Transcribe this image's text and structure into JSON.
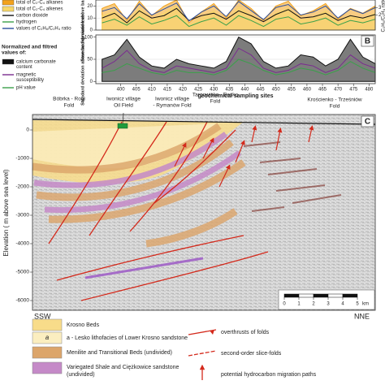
{
  "chart_data": [
    {
      "type": "line",
      "y_label": "Standard deviation above background level",
      "y2_label": "C₂H₆/C₂H₄ ratio",
      "x": [
        394,
        398,
        402,
        406,
        410,
        414,
        418,
        422,
        426,
        430,
        434,
        438,
        442,
        446,
        450,
        454,
        458,
        462,
        466,
        470,
        474,
        478,
        482
      ],
      "xlim": [
        392,
        482
      ],
      "ylim": [
        0,
        25
      ],
      "yticks": [
        0,
        10,
        20
      ],
      "y2lim": [
        0,
        4
      ],
      "y2ticks": [
        2,
        3
      ],
      "series": [
        {
          "name": "total of C₂-C₄ alkanes",
          "color": "#f3a21c",
          "fill": true,
          "values": [
            18,
            22,
            8,
            24,
            12,
            20,
            25,
            6,
            15,
            22,
            10,
            25,
            18,
            8,
            20,
            24,
            12,
            16,
            22,
            9,
            18,
            14,
            20
          ]
        },
        {
          "name": "total of C₂-C₄ alkenes",
          "color": "#f7d76a",
          "fill": true,
          "values": [
            12,
            15,
            5,
            18,
            8,
            14,
            20,
            4,
            10,
            16,
            6,
            19,
            12,
            5,
            14,
            18,
            8,
            10,
            16,
            6,
            12,
            9,
            14
          ]
        },
        {
          "name": "carbon dioxide",
          "color": "#111111",
          "fill": false,
          "values": [
            10,
            14,
            6,
            16,
            10,
            12,
            18,
            8,
            12,
            14,
            9,
            16,
            12,
            7,
            13,
            17,
            10,
            11,
            14,
            8,
            12,
            10,
            13
          ]
        },
        {
          "name": "hydrogen",
          "color": "#3aa04a",
          "fill": false,
          "values": [
            6,
            9,
            4,
            11,
            5,
            8,
            12,
            3,
            7,
            10,
            4,
            12,
            8,
            3,
            9,
            11,
            5,
            7,
            10,
            4,
            8,
            6,
            9
          ]
        },
        {
          "name": "values of C₂H₆/C₂H₄ ratio",
          "color": "#2c4fa0",
          "fill": false,
          "axis": "y2",
          "values": [
            2.5,
            3,
            1.5,
            3.5,
            2,
            2.8,
            3.6,
            1.2,
            2.4,
            3.2,
            1.8,
            3.8,
            2.6,
            1.4,
            3,
            3.4,
            2,
            2.4,
            3.2,
            1.6,
            2.8,
            2.2,
            3
          ]
        }
      ]
    },
    {
      "type": "line",
      "letter": "B",
      "legend_title": [
        "Normalized and filtred",
        "values of:"
      ],
      "y_label": "Standard deviation above background level",
      "x_label": "geochemical sampling sites",
      "x": [
        394,
        398,
        402,
        406,
        410,
        414,
        418,
        422,
        426,
        430,
        434,
        438,
        442,
        446,
        450,
        454,
        458,
        462,
        466,
        470,
        474,
        478,
        482
      ],
      "xlim": [
        392,
        482
      ],
      "xticks": [
        400,
        405,
        410,
        415,
        420,
        425,
        430,
        435,
        440,
        445,
        450,
        455,
        460,
        465,
        470,
        475,
        480
      ],
      "ylim": [
        -5,
        105
      ],
      "yticks": [
        0,
        50,
        100
      ],
      "series": [
        {
          "name": [
            "calcium carbonate",
            "content"
          ],
          "color": "#111111",
          "fill": true,
          "values": [
            50,
            60,
            95,
            55,
            35,
            30,
            50,
            40,
            35,
            30,
            45,
            100,
            85,
            45,
            30,
            35,
            60,
            55,
            35,
            50,
            95,
            55,
            40
          ]
        },
        {
          "name": [
            "magnetic",
            "susceptibility"
          ],
          "color": "#7a2c8f",
          "fill": false,
          "values": [
            30,
            45,
            70,
            40,
            25,
            20,
            35,
            30,
            25,
            20,
            30,
            75,
            60,
            30,
            20,
            25,
            40,
            35,
            20,
            30,
            60,
            40,
            30
          ]
        },
        {
          "name": [
            "pH value"
          ],
          "color": "#3aa04a",
          "fill": false,
          "values": [
            20,
            25,
            40,
            30,
            20,
            15,
            25,
            20,
            20,
            15,
            25,
            50,
            40,
            25,
            15,
            20,
            30,
            25,
            15,
            25,
            45,
            30,
            20
          ]
        }
      ]
    }
  ],
  "section": {
    "letter": "C",
    "folds": [
      [
        "Bóbrka - Rogi",
        "Fold"
      ],
      [
        "Iwonicz village",
        "Oil Field"
      ],
      [
        "Iwonicz village",
        "- Rymanów Fold"
      ],
      [
        "Targowiska - Besko",
        "Fold"
      ],
      [
        "Krościenko - Trześniów",
        "Fold"
      ]
    ],
    "y_label": "Elevation ( m above sea level)",
    "ylim": [
      500,
      -6300
    ],
    "yticks": [
      0,
      -1000,
      -2000,
      -3000,
      -4000,
      -5000,
      -6000
    ],
    "left": "SSW",
    "right": "NNE",
    "scale": {
      "ticks": [
        0,
        1,
        2,
        3,
        4,
        5
      ],
      "unit": "km"
    }
  },
  "legend": {
    "units": [
      {
        "label": "Krosno Beds"
      },
      {
        "symbol": "a",
        "label": "a - Lesko lithofacies of Lower Krosno sandstone"
      },
      {
        "label": [
          "Menilite and Transitional Beds (undivided)"
        ]
      },
      {
        "label": [
          "Variegated Shale and Ciężkowice sandstone",
          "(undivided)"
        ]
      }
    ],
    "lines": [
      "overthrusts of folds",
      "second-order slice-folds",
      "potential hydrocarbon migration paths"
    ]
  }
}
